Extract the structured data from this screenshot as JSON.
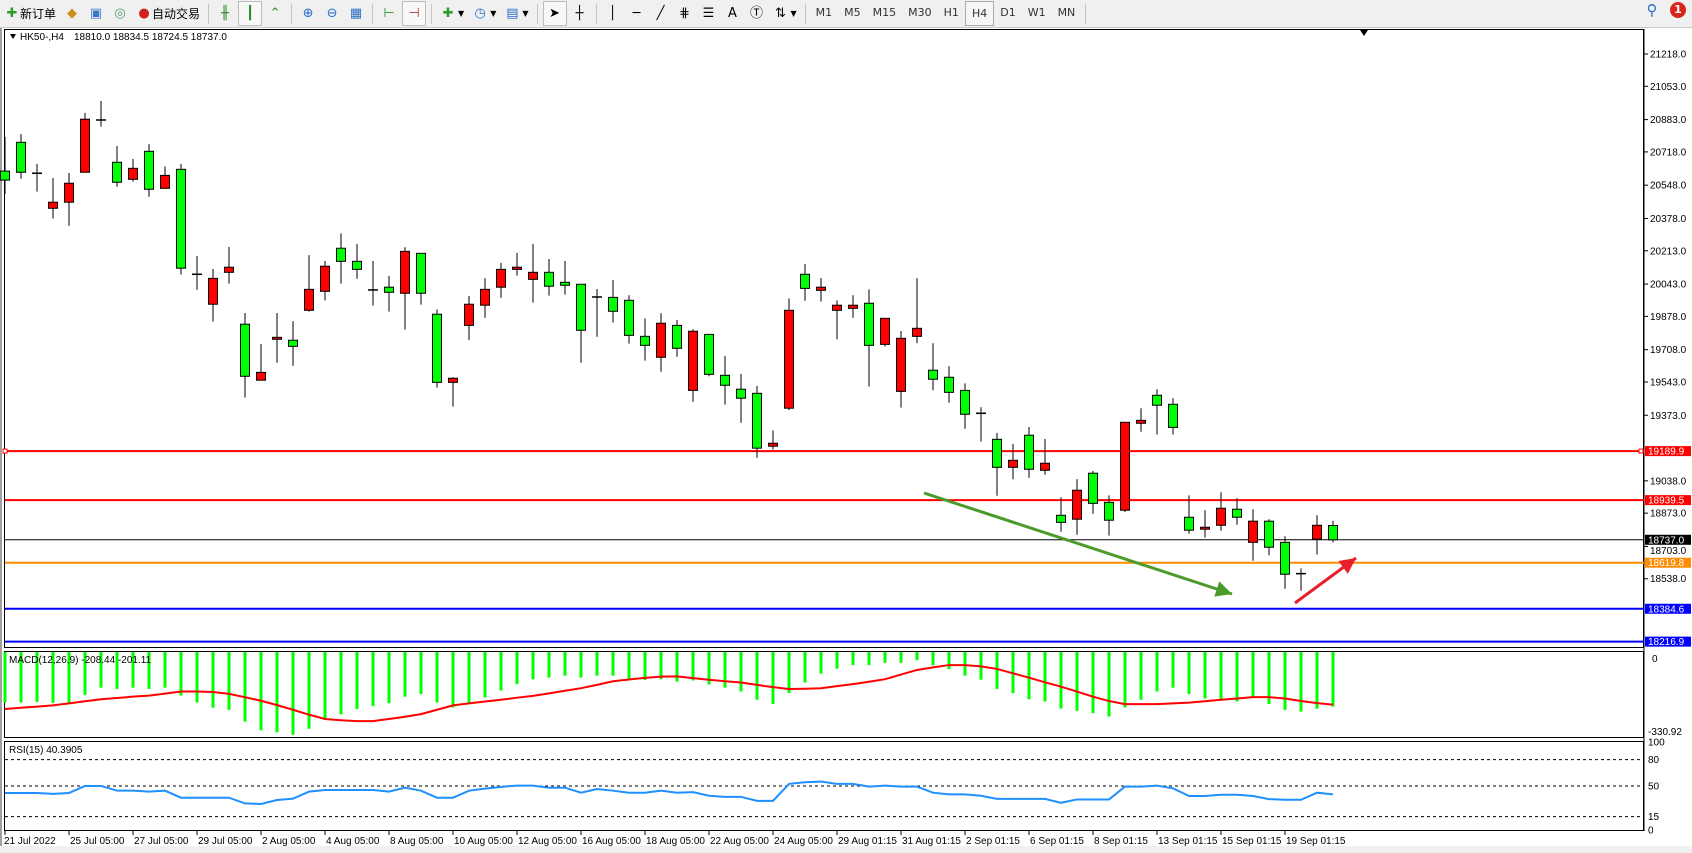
{
  "toolbar": {
    "new_order_label": "新订单",
    "auto_trading_label": "自动交易",
    "text_tool_label": "A",
    "timeframes": [
      "M1",
      "M5",
      "M15",
      "M30",
      "H1",
      "H4",
      "D1",
      "W1",
      "MN"
    ],
    "active_timeframe": "H4",
    "notification_count": "1"
  },
  "chart_header": {
    "symbol": "HK50-,H4",
    "ohlc": "18810.0 18834.5 18724.5 18737.0"
  },
  "colors": {
    "bull": "#ff0000",
    "bear": "#00ff00",
    "macd_hist": "#00ff00",
    "macd_signal": "#ff0000",
    "rsi": "#1e90ff",
    "green_arrow": "#4c9a2a",
    "red_arrow": "#e8202a"
  },
  "chart_data": {
    "type": "candlestick",
    "price_axis_labels": [
      "21218.0",
      "21053.0",
      "20883.0",
      "20718.0",
      "20548.0",
      "20378.0",
      "20213.0",
      "20043.0",
      "19878.0",
      "19708.0",
      "19543.0",
      "19373.0",
      "19038.0",
      "18873.0",
      "18703.0",
      "18538.0"
    ],
    "time_labels": [
      "21 Jul 2022",
      "25 Jul 05:00",
      "27 Jul 05:00",
      "29 Jul 05:00",
      "2 Aug 05:00",
      "4 Aug 05:00",
      "8 Aug 05:00",
      "10 Aug 05:00",
      "12 Aug 05:00",
      "16 Aug 05:00",
      "18 Aug 05:00",
      "22 Aug 05:00",
      "24 Aug 05:00",
      "29 Aug 01:15",
      "31 Aug 01:15",
      "2 Sep 01:15",
      "6 Sep 01:15",
      "8 Sep 01:15",
      "13 Sep 01:15",
      "15 Sep 01:15",
      "19 Sep 01:15"
    ],
    "ylim": [
      18200,
      21320
    ],
    "ohlc": [
      [
        20620,
        20794,
        20503,
        20574
      ],
      [
        20767,
        20809,
        20581,
        20614
      ],
      [
        20609,
        20656,
        20515,
        20609
      ],
      [
        20430,
        20585,
        20377,
        20461
      ],
      [
        20461,
        20610,
        20341,
        20558
      ],
      [
        20614,
        20917,
        20614,
        20885
      ],
      [
        20881,
        20978,
        20847,
        20881
      ],
      [
        20665,
        20748,
        20540,
        20563
      ],
      [
        20578,
        20682,
        20566,
        20634
      ],
      [
        20721,
        20758,
        20489,
        20527
      ],
      [
        20532,
        20644,
        20532,
        20598
      ],
      [
        20629,
        20656,
        20091,
        20124
      ],
      [
        20093,
        20186,
        20014,
        20093
      ],
      [
        19940,
        20120,
        19851,
        20072
      ],
      [
        20103,
        20232,
        20045,
        20129
      ],
      [
        19838,
        19895,
        19463,
        19572
      ],
      [
        19552,
        19737,
        19552,
        19592
      ],
      [
        19761,
        19895,
        19641,
        19771
      ],
      [
        19756,
        19854,
        19626,
        19725
      ],
      [
        19909,
        20191,
        19902,
        20016
      ],
      [
        20006,
        20161,
        19960,
        20134
      ],
      [
        20226,
        20302,
        20045,
        20159
      ],
      [
        20159,
        20248,
        20070,
        20118
      ],
      [
        20013,
        20161,
        19933,
        20013
      ],
      [
        20027,
        20084,
        19902,
        20001
      ],
      [
        19996,
        20231,
        19810,
        20210
      ],
      [
        20200,
        20200,
        19938,
        19996
      ],
      [
        19889,
        19914,
        19514,
        19541
      ],
      [
        19541,
        19568,
        19417,
        19562
      ],
      [
        19832,
        19982,
        19757,
        19940
      ],
      [
        19935,
        20073,
        19871,
        20016
      ],
      [
        20027,
        20151,
        19973,
        20118
      ],
      [
        20118,
        20202,
        20086,
        20129
      ],
      [
        20067,
        20248,
        19948,
        20103
      ],
      [
        20103,
        20171,
        19984,
        20032
      ],
      [
        20052,
        20161,
        19989,
        20037
      ],
      [
        20042,
        20042,
        19641,
        19807
      ],
      [
        19977,
        20018,
        19774,
        19977
      ],
      [
        19975,
        20064,
        19846,
        19904
      ],
      [
        19960,
        19986,
        19739,
        19781
      ],
      [
        19776,
        19868,
        19652,
        19730
      ],
      [
        19669,
        19894,
        19595,
        19843
      ],
      [
        19832,
        19860,
        19672,
        19715
      ],
      [
        19500,
        19812,
        19442,
        19802
      ],
      [
        19786,
        19786,
        19572,
        19582
      ],
      [
        19577,
        19676,
        19427,
        19526
      ],
      [
        19506,
        19584,
        19335,
        19460
      ],
      [
        19485,
        19523,
        19156,
        19205
      ],
      [
        19215,
        19296,
        19199,
        19230
      ],
      [
        19409,
        19970,
        19400,
        19909
      ],
      [
        20093,
        20146,
        19958,
        20021
      ],
      [
        20011,
        20074,
        19953,
        20027
      ],
      [
        19909,
        19960,
        19761,
        19935
      ],
      [
        19919,
        19986,
        19871,
        19935
      ],
      [
        19945,
        20016,
        19519,
        19730
      ],
      [
        19735,
        19868,
        19724,
        19868
      ],
      [
        19495,
        19803,
        19412,
        19766
      ],
      [
        19776,
        20073,
        19741,
        19817
      ],
      [
        19603,
        19741,
        19501,
        19557
      ],
      [
        19567,
        19623,
        19437,
        19490
      ],
      [
        19500,
        19536,
        19304,
        19378
      ],
      [
        19383,
        19414,
        19238,
        19383
      ],
      [
        19250,
        19283,
        18962,
        19107
      ],
      [
        19107,
        19226,
        19046,
        19143
      ],
      [
        19271,
        19313,
        19054,
        19097
      ],
      [
        19092,
        19252,
        19069,
        19128
      ],
      [
        18862,
        18954,
        18778,
        18826
      ],
      [
        18842,
        19047,
        18763,
        18990
      ],
      [
        19077,
        19088,
        18870,
        18923
      ],
      [
        18928,
        18964,
        18758,
        18837
      ],
      [
        18888,
        19337,
        18878,
        19337
      ],
      [
        19332,
        19409,
        19289,
        19347
      ],
      [
        19475,
        19506,
        19274,
        19424
      ],
      [
        19429,
        19460,
        19274,
        19311
      ],
      [
        18852,
        18964,
        18768,
        18786
      ],
      [
        18791,
        18888,
        18748,
        18801
      ],
      [
        18811,
        18980,
        18783,
        18898
      ],
      [
        18893,
        18949,
        18814,
        18852
      ],
      [
        18724,
        18893,
        18630,
        18832
      ],
      [
        18832,
        18842,
        18658,
        18699
      ],
      [
        18724,
        18755,
        18487,
        18561
      ],
      [
        18564,
        18591,
        18477,
        18564
      ],
      [
        18740,
        18862,
        18661,
        18811
      ],
      [
        18810,
        18834.5,
        18724.5,
        18737
      ]
    ],
    "levels": [
      {
        "value": 19189.9,
        "label": "19189.9",
        "color": "#ff0000"
      },
      {
        "value": 18939.5,
        "label": "18939.5",
        "color": "#ff0000"
      },
      {
        "value": 18737.0,
        "label": "18737.0",
        "color": "#000000"
      },
      {
        "value": 18619.8,
        "label": "18619.8",
        "color": "#ff8c00"
      },
      {
        "value": 18384.6,
        "label": "18384.6",
        "color": "#0000ff"
      },
      {
        "value": 18216.9,
        "label": "18216.9",
        "color": "#0000ff"
      }
    ],
    "macd": {
      "label": "MACD(12,26,9) -208.44 -201.11",
      "axis_labels": [
        "0",
        "-330.92"
      ],
      "ylim": [
        -330.92,
        0
      ],
      "histogram": [
        -193,
        -193,
        -190,
        -194,
        -193,
        -163,
        -135,
        -140,
        -135,
        -140,
        -135,
        -166,
        -193,
        -213,
        -221,
        -267,
        -301,
        -309,
        -318,
        -295,
        -260,
        -239,
        -218,
        -206,
        -195,
        -170,
        -160,
        -193,
        -212,
        -193,
        -173,
        -146,
        -121,
        -102,
        -96,
        -88,
        -96,
        -88,
        -88,
        -102,
        -105,
        -102,
        -111,
        -107,
        -123,
        -135,
        -150,
        -182,
        -199,
        -156,
        -115,
        -80,
        -61,
        -47,
        -47,
        -38,
        -38,
        -28,
        -48,
        -63,
        -88,
        -104,
        -140,
        -156,
        -180,
        -189,
        -216,
        -225,
        -234,
        -247,
        -212,
        -182,
        -150,
        -135,
        -160,
        -177,
        -186,
        -189,
        -173,
        -199,
        -221,
        -228,
        -217,
        -208.44
      ],
      "signal": [
        -218,
        -213,
        -209,
        -204,
        -196,
        -188,
        -180,
        -175,
        -170,
        -166,
        -158,
        -150,
        -150,
        -152,
        -159,
        -172,
        -186,
        -203,
        -221,
        -240,
        -257,
        -262,
        -265,
        -265,
        -257,
        -248,
        -238,
        -221,
        -204,
        -196,
        -189,
        -182,
        -174,
        -167,
        -157,
        -147,
        -137,
        -124,
        -110,
        -103,
        -97,
        -92,
        -91,
        -98,
        -104,
        -110,
        -115,
        -124,
        -133,
        -140,
        -139,
        -137,
        -129,
        -121,
        -112,
        -102,
        -84,
        -66,
        -56,
        -47,
        -47,
        -52,
        -62,
        -79,
        -96,
        -114,
        -131,
        -150,
        -170,
        -187,
        -199,
        -199,
        -199,
        -196,
        -193,
        -188,
        -182,
        -177,
        -172,
        -172,
        -177,
        -187,
        -195,
        -201.11
      ]
    },
    "rsi": {
      "label": "RSI(15) 40.3905",
      "axis_labels": [
        "100",
        "80",
        "50",
        "15",
        "0"
      ],
      "levels": [
        80,
        50,
        15
      ],
      "ylim": [
        0,
        100
      ],
      "values": [
        42,
        42,
        42,
        41,
        42,
        50,
        50,
        44.6,
        44.6,
        43.5,
        44.6,
        36.6,
        36.6,
        36.6,
        36.6,
        30.1,
        29.4,
        34,
        35.5,
        43.5,
        45.4,
        45.4,
        45.4,
        45.4,
        43.5,
        48,
        44.6,
        36.6,
        36.6,
        44.6,
        47,
        49,
        50.4,
        50.4,
        48,
        48,
        42.3,
        46.5,
        44.6,
        42.3,
        42.3,
        44.6,
        42.3,
        43,
        38.8,
        37.6,
        37.6,
        33,
        33,
        52.3,
        54.2,
        55,
        52.3,
        52.3,
        49.2,
        50.4,
        49.2,
        49.2,
        42.3,
        40.4,
        40.4,
        38.8,
        35.3,
        35.3,
        35.3,
        35.3,
        30.8,
        34.6,
        34.6,
        34.6,
        49.2,
        49.2,
        50.4,
        47.3,
        38.5,
        38.5,
        40,
        40,
        38.5,
        35,
        34.2,
        34.2,
        42.3,
        40.3905
      ]
    }
  }
}
